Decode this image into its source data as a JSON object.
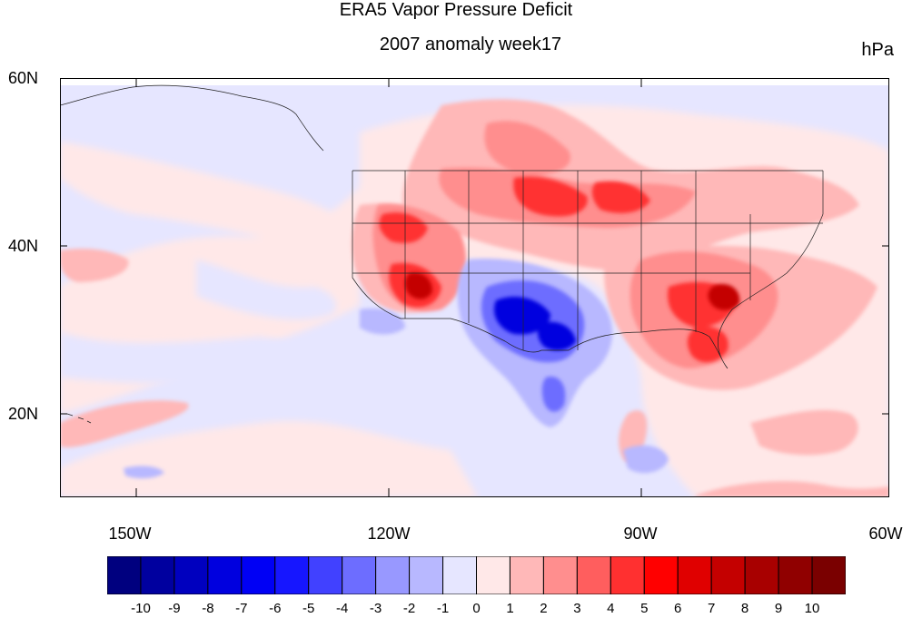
{
  "title": "ERA5 Vapor Pressure Deficit",
  "subtitle": "2007 anomaly week17",
  "units": "hPa",
  "lat_labels": [
    "60N",
    "40N",
    "20N"
  ],
  "lon_labels": [
    "150W",
    "120W",
    "90W",
    "60W"
  ],
  "colorbar": {
    "labels": [
      "-10",
      "-9",
      "-8",
      "-7",
      "-6",
      "-5",
      "-4",
      "-3",
      "-2",
      "-1",
      "0",
      "1",
      "2",
      "3",
      "4",
      "5",
      "6",
      "7",
      "8",
      "9",
      "10"
    ],
    "colors": [
      "#00007f",
      "#00009f",
      "#0000bf",
      "#0000df",
      "#0000f5",
      "#1616ff",
      "#4141ff",
      "#6d6dff",
      "#9898ff",
      "#b8b8ff",
      "#e6e6ff",
      "#ffe8e8",
      "#ffb8b8",
      "#ff8e8e",
      "#ff5e5e",
      "#ff3030",
      "#ff0000",
      "#e00000",
      "#c40000",
      "#a80000",
      "#900000",
      "#7a0000"
    ]
  },
  "map": {
    "lon_range": [
      -160,
      -61
    ],
    "lat_range": [
      10,
      60
    ],
    "anomaly_regions": [
      {
        "name": "southern-plains-negative",
        "level": -6
      },
      {
        "name": "southeast-positive",
        "level": 6
      },
      {
        "name": "southwest-positive",
        "level": 6
      },
      {
        "name": "northern-plains-positive",
        "level": 4
      }
    ]
  }
}
